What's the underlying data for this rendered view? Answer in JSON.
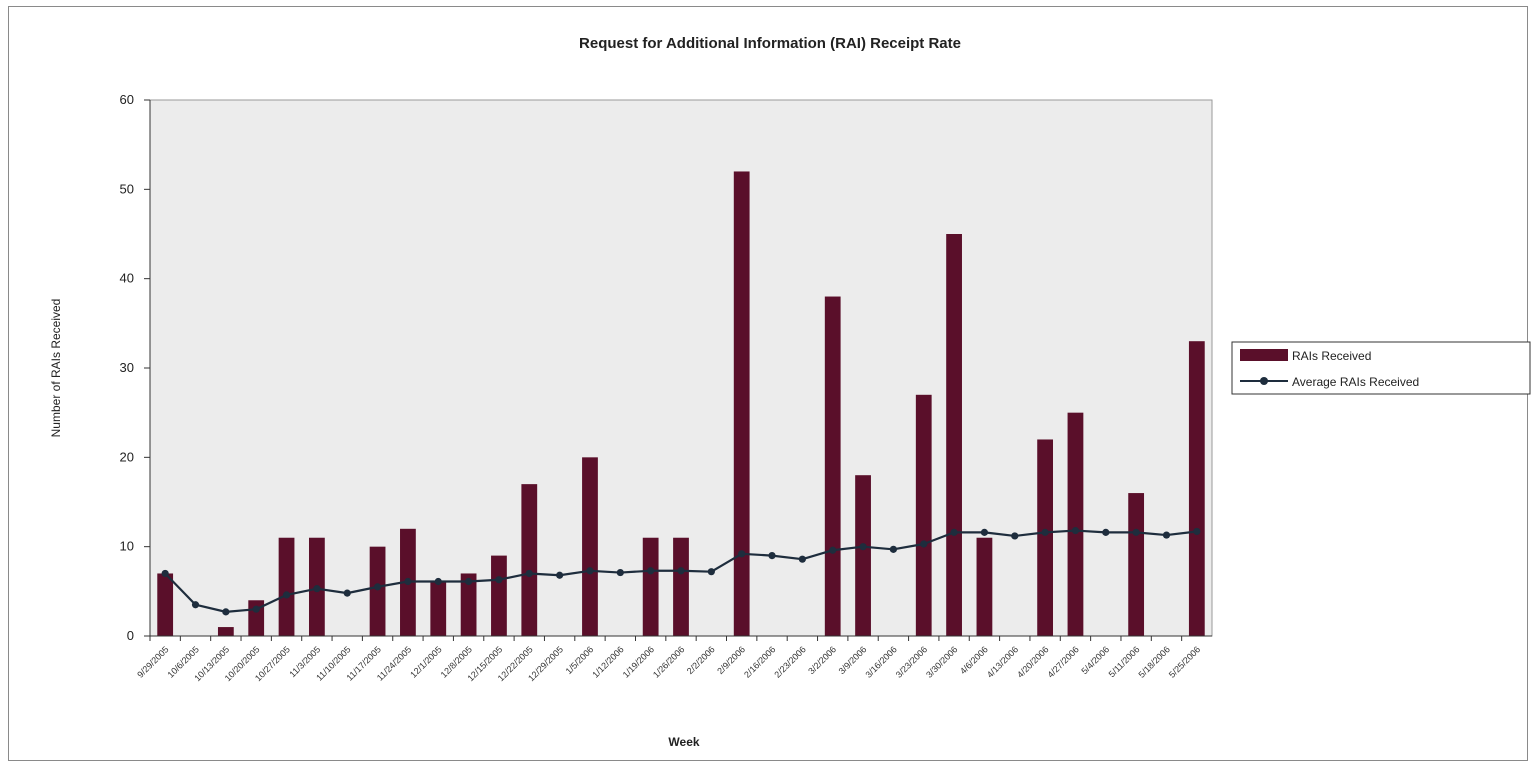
{
  "chart_data": {
    "type": "bar",
    "title": "Request for Additional Information (RAI) Receipt Rate",
    "xlabel": "Week",
    "ylabel": "Number of RAIs Received",
    "ylim": [
      0,
      60
    ],
    "yticks": [
      0,
      10,
      20,
      30,
      40,
      50,
      60
    ],
    "grid": false,
    "legend_position": "right",
    "colors": {
      "bar": "#5a0f2a",
      "line": "#1e2d3d",
      "plot_bg": "#ececec"
    },
    "categories": [
      "9/29/2005",
      "10/6/2005",
      "10/13/2005",
      "10/20/2005",
      "10/27/2005",
      "11/3/2005",
      "11/10/2005",
      "11/17/2005",
      "11/24/2005",
      "12/1/2005",
      "12/8/2005",
      "12/15/2005",
      "12/22/2005",
      "12/29/2005",
      "1/5/2006",
      "1/12/2006",
      "1/19/2006",
      "1/26/2006",
      "2/2/2006",
      "2/9/2006",
      "2/16/2006",
      "2/23/2006",
      "3/2/2006",
      "3/9/2006",
      "3/16/2006",
      "3/23/2006",
      "3/30/2006",
      "4/6/2006",
      "4/13/2006",
      "4/20/2006",
      "4/27/2006",
      "5/4/2006",
      "5/11/2006",
      "5/18/2006",
      "5/25/2006"
    ],
    "series": [
      {
        "name": "RAIs Received",
        "kind": "bar",
        "values": [
          7,
          0,
          1,
          4,
          11,
          11,
          0,
          10,
          12,
          6,
          7,
          9,
          17,
          0,
          20,
          0,
          11,
          11,
          0,
          52,
          0,
          0,
          38,
          18,
          0,
          27,
          45,
          11,
          0,
          22,
          25,
          0,
          16,
          0,
          33
        ]
      },
      {
        "name": "Average RAIs Received",
        "kind": "line",
        "values": [
          7,
          3.5,
          2.7,
          3.0,
          4.6,
          5.3,
          4.8,
          5.5,
          6.1,
          6.1,
          6.1,
          6.3,
          7.0,
          6.8,
          7.3,
          7.1,
          7.3,
          7.3,
          7.2,
          9.2,
          9.0,
          8.6,
          9.6,
          10.0,
          9.7,
          10.3,
          11.6,
          11.6,
          11.2,
          11.6,
          11.8,
          11.6,
          11.6,
          11.3,
          11.7
        ]
      }
    ]
  }
}
